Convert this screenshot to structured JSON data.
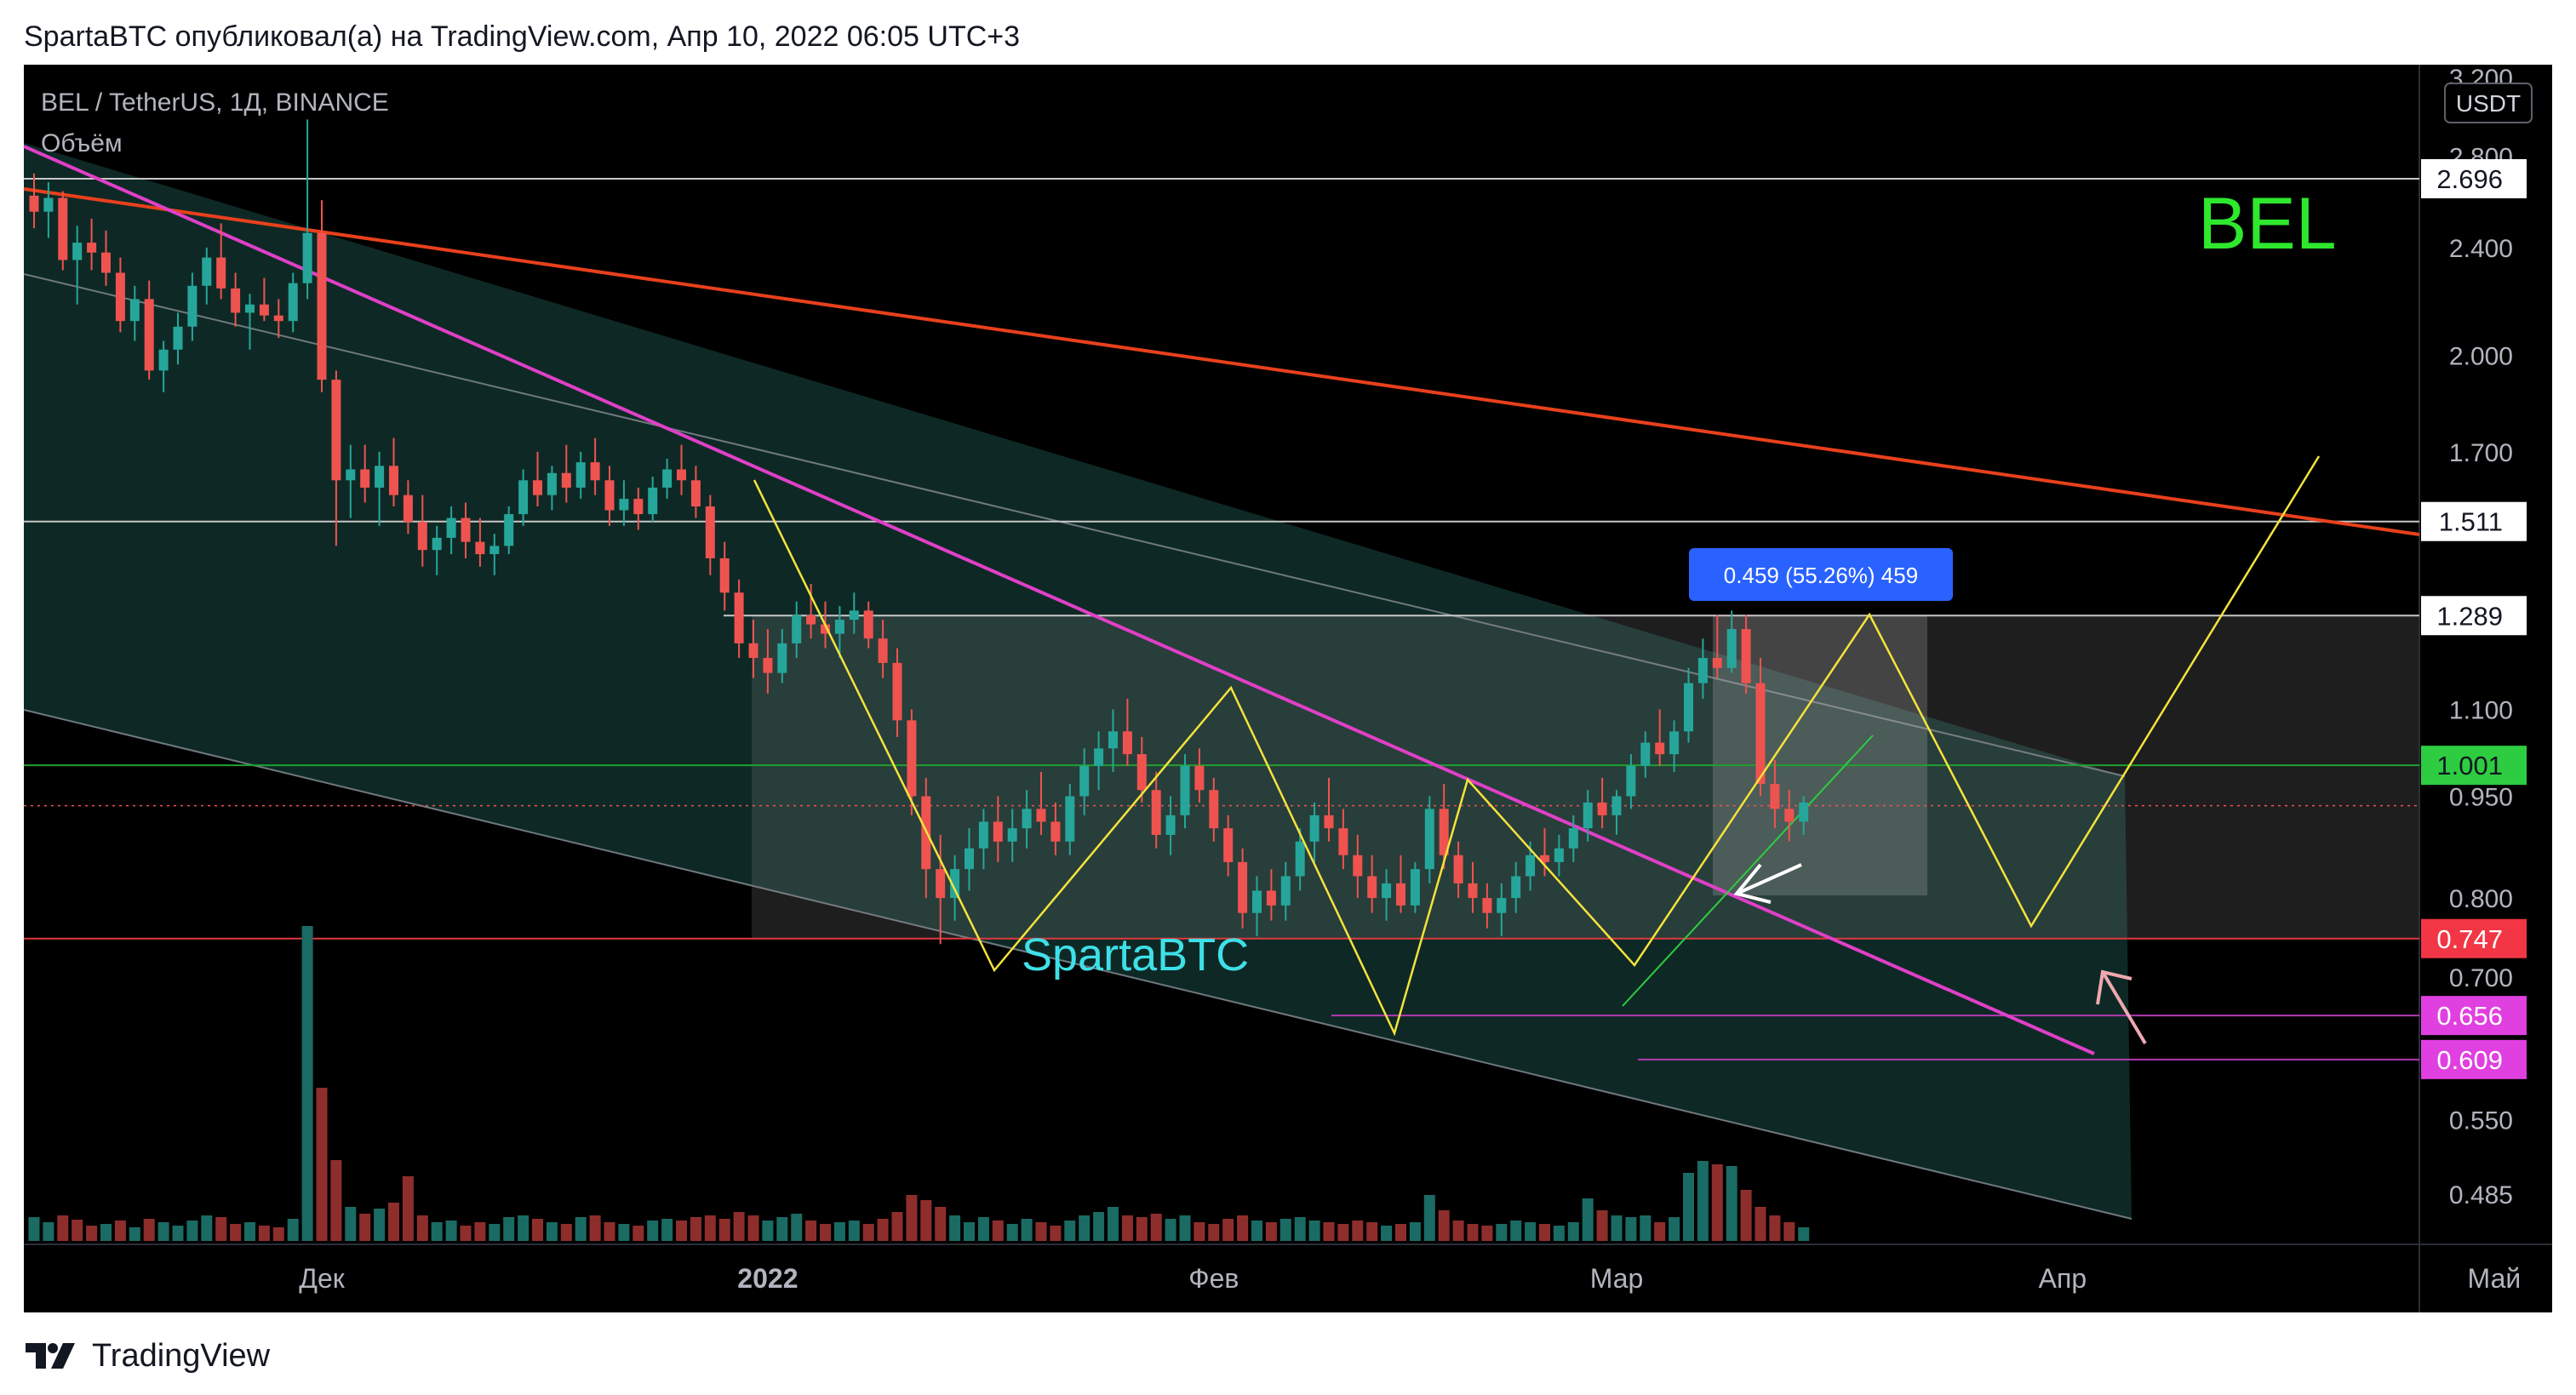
{
  "header": {
    "publish_line": "SpartaBTC опубликовал(а) на TradingView.com, Апр 10, 2022 06:05 UTC+3"
  },
  "footer": {
    "brand": "TradingView",
    "logo_icon": "tradingview-logo-icon"
  },
  "chart_data": {
    "type": "candlestick",
    "symbol_line": "BEL / TetherUS, 1Д, BINANCE",
    "indicator_label": "Объём",
    "watermark": "BEL",
    "author_label": "SpartaBTC",
    "currency_label": "USDT",
    "scale": "log",
    "ylim": [
      0.46,
      3.25
    ],
    "x_labels": [
      {
        "label": "Дек",
        "day": 20,
        "bold": false
      },
      {
        "label": "2022",
        "day": 51,
        "bold": true
      },
      {
        "label": "Фев",
        "day": 82,
        "bold": false
      },
      {
        "label": "Мар",
        "day": 110,
        "bold": false
      },
      {
        "label": "Апр",
        "day": 141,
        "bold": false
      },
      {
        "label": "Май",
        "day": 171,
        "bold": false
      }
    ],
    "y_ticks": [
      {
        "label": "3.200",
        "value": 3.2
      },
      {
        "label": "2.800",
        "value": 2.8
      },
      {
        "label": "2.400",
        "value": 2.4
      },
      {
        "label": "2.000",
        "value": 2.0
      },
      {
        "label": "1.700",
        "value": 1.7
      },
      {
        "label": "1.100",
        "value": 1.1
      },
      {
        "label": "0.950",
        "value": 0.95
      },
      {
        "label": "0.800",
        "value": 0.8
      },
      {
        "label": "0.700",
        "value": 0.7
      },
      {
        "label": "0.550",
        "value": 0.55
      },
      {
        "label": "0.485",
        "value": 0.485
      }
    ],
    "price_labels": [
      {
        "label": "2.696",
        "value": 2.696,
        "bg": "#ffffff",
        "fg": "#131722",
        "line": "#c8c8c8"
      },
      {
        "label": "1.511",
        "value": 1.511,
        "bg": "#ffffff",
        "fg": "#131722",
        "line": "#c8c8c8"
      },
      {
        "label": "1.289",
        "value": 1.289,
        "bg": "#ffffff",
        "fg": "#131722",
        "line": "#c8c8c8"
      },
      {
        "label": "1.001",
        "value": 1.001,
        "bg": "#2ecc40",
        "fg": "#131722",
        "line": "#1fa02f"
      },
      {
        "label": "0.747",
        "value": 0.747,
        "bg": "#f23645",
        "fg": "#ffffff",
        "line": "#e0393e"
      },
      {
        "label": "0.656",
        "value": 0.656,
        "bg": "#e040e0",
        "fg": "#ffffff",
        "line": "#b23ab2"
      },
      {
        "label": "0.609",
        "value": 0.609,
        "bg": "#e040e0",
        "fg": "#ffffff",
        "line": "#b23ab2"
      }
    ],
    "current_price": 0.935,
    "measure_label": "0.459 (55.26%) 459",
    "colors": {
      "background": "#000000",
      "up": "#26a69a",
      "down": "#ef5350",
      "volume_up": "#1a6b64",
      "volume_down": "#8e2e2c",
      "channel_fill": "#10302c",
      "magenta_trend": "#e040c8",
      "red_trend": "#e8401c",
      "zigzag": "#f5e33c",
      "measure_box": "#2962ff",
      "watermark": "#2ee82e",
      "author": "#3ee0e8"
    },
    "candles": [
      [
        0,
        2.62,
        2.72,
        2.48,
        2.55
      ],
      [
        1,
        2.55,
        2.68,
        2.44,
        2.61
      ],
      [
        2,
        2.61,
        2.64,
        2.31,
        2.35
      ],
      [
        3,
        2.35,
        2.49,
        2.18,
        2.42
      ],
      [
        4,
        2.42,
        2.52,
        2.31,
        2.38
      ],
      [
        5,
        2.38,
        2.47,
        2.25,
        2.3
      ],
      [
        6,
        2.3,
        2.36,
        2.08,
        2.12
      ],
      [
        7,
        2.12,
        2.25,
        2.05,
        2.2
      ],
      [
        8,
        2.2,
        2.27,
        1.92,
        1.95
      ],
      [
        9,
        1.95,
        2.05,
        1.88,
        2.02
      ],
      [
        10,
        2.02,
        2.15,
        1.97,
        2.1
      ],
      [
        11,
        2.1,
        2.3,
        2.05,
        2.25
      ],
      [
        12,
        2.25,
        2.4,
        2.18,
        2.36
      ],
      [
        13,
        2.36,
        2.5,
        2.2,
        2.24
      ],
      [
        14,
        2.24,
        2.3,
        2.1,
        2.15
      ],
      [
        15,
        2.15,
        2.22,
        2.02,
        2.18
      ],
      [
        16,
        2.18,
        2.28,
        2.12,
        2.14
      ],
      [
        17,
        2.14,
        2.2,
        2.06,
        2.12
      ],
      [
        18,
        2.12,
        2.3,
        2.08,
        2.26
      ],
      [
        19,
        2.26,
        2.98,
        2.2,
        2.46
      ],
      [
        20,
        2.46,
        2.6,
        1.88,
        1.92
      ],
      [
        21,
        1.92,
        1.95,
        1.45,
        1.62
      ],
      [
        22,
        1.62,
        1.72,
        1.52,
        1.65
      ],
      [
        23,
        1.65,
        1.72,
        1.56,
        1.6
      ],
      [
        24,
        1.6,
        1.7,
        1.5,
        1.66
      ],
      [
        25,
        1.66,
        1.74,
        1.55,
        1.58
      ],
      [
        26,
        1.58,
        1.62,
        1.48,
        1.51
      ],
      [
        27,
        1.51,
        1.58,
        1.4,
        1.44
      ],
      [
        28,
        1.44,
        1.5,
        1.38,
        1.47
      ],
      [
        29,
        1.47,
        1.55,
        1.43,
        1.52
      ],
      [
        30,
        1.52,
        1.56,
        1.42,
        1.46
      ],
      [
        31,
        1.46,
        1.52,
        1.4,
        1.43
      ],
      [
        32,
        1.43,
        1.48,
        1.38,
        1.45
      ],
      [
        33,
        1.45,
        1.55,
        1.43,
        1.53
      ],
      [
        34,
        1.53,
        1.65,
        1.5,
        1.62
      ],
      [
        35,
        1.62,
        1.7,
        1.55,
        1.58
      ],
      [
        36,
        1.58,
        1.66,
        1.54,
        1.64
      ],
      [
        37,
        1.64,
        1.72,
        1.56,
        1.6
      ],
      [
        38,
        1.6,
        1.7,
        1.57,
        1.67
      ],
      [
        39,
        1.67,
        1.74,
        1.58,
        1.62
      ],
      [
        40,
        1.62,
        1.66,
        1.5,
        1.54
      ],
      [
        41,
        1.54,
        1.62,
        1.5,
        1.57
      ],
      [
        42,
        1.57,
        1.6,
        1.49,
        1.53
      ],
      [
        43,
        1.53,
        1.63,
        1.51,
        1.6
      ],
      [
        44,
        1.6,
        1.68,
        1.57,
        1.65
      ],
      [
        45,
        1.65,
        1.72,
        1.58,
        1.62
      ],
      [
        46,
        1.62,
        1.66,
        1.52,
        1.55
      ],
      [
        47,
        1.55,
        1.58,
        1.38,
        1.42
      ],
      [
        48,
        1.42,
        1.46,
        1.3,
        1.34
      ],
      [
        49,
        1.34,
        1.37,
        1.2,
        1.23
      ],
      [
        50,
        1.23,
        1.28,
        1.16,
        1.2
      ],
      [
        51,
        1.2,
        1.26,
        1.13,
        1.17
      ],
      [
        52,
        1.17,
        1.26,
        1.15,
        1.23
      ],
      [
        53,
        1.23,
        1.32,
        1.2,
        1.29
      ],
      [
        54,
        1.29,
        1.36,
        1.24,
        1.27
      ],
      [
        55,
        1.27,
        1.32,
        1.22,
        1.25
      ],
      [
        56,
        1.25,
        1.31,
        1.2,
        1.28
      ],
      [
        57,
        1.28,
        1.34,
        1.25,
        1.3
      ],
      [
        58,
        1.3,
        1.32,
        1.22,
        1.24
      ],
      [
        59,
        1.24,
        1.28,
        1.16,
        1.19
      ],
      [
        60,
        1.19,
        1.22,
        1.05,
        1.08
      ],
      [
        61,
        1.08,
        1.1,
        0.92,
        0.95
      ],
      [
        62,
        0.95,
        0.98,
        0.8,
        0.84
      ],
      [
        63,
        0.84,
        0.89,
        0.74,
        0.8
      ],
      [
        64,
        0.8,
        0.86,
        0.77,
        0.84
      ],
      [
        65,
        0.84,
        0.9,
        0.81,
        0.87
      ],
      [
        66,
        0.87,
        0.93,
        0.84,
        0.91
      ],
      [
        67,
        0.91,
        0.95,
        0.85,
        0.88
      ],
      [
        68,
        0.88,
        0.93,
        0.85,
        0.9
      ],
      [
        69,
        0.9,
        0.96,
        0.87,
        0.93
      ],
      [
        70,
        0.93,
        0.99,
        0.89,
        0.91
      ],
      [
        71,
        0.91,
        0.94,
        0.86,
        0.88
      ],
      [
        72,
        0.88,
        0.97,
        0.86,
        0.95
      ],
      [
        73,
        0.95,
        1.03,
        0.92,
        1.0
      ],
      [
        74,
        1.0,
        1.06,
        0.96,
        1.03
      ],
      [
        75,
        1.03,
        1.1,
        0.99,
        1.06
      ],
      [
        76,
        1.06,
        1.12,
        1.0,
        1.02
      ],
      [
        77,
        1.02,
        1.05,
        0.94,
        0.96
      ],
      [
        78,
        0.96,
        0.99,
        0.87,
        0.89
      ],
      [
        79,
        0.89,
        0.95,
        0.86,
        0.92
      ],
      [
        80,
        0.92,
        1.02,
        0.9,
        1.0
      ],
      [
        81,
        1.0,
        1.03,
        0.94,
        0.96
      ],
      [
        82,
        0.96,
        0.98,
        0.88,
        0.9
      ],
      [
        83,
        0.9,
        0.92,
        0.83,
        0.85
      ],
      [
        84,
        0.85,
        0.87,
        0.76,
        0.78
      ],
      [
        85,
        0.78,
        0.83,
        0.75,
        0.81
      ],
      [
        86,
        0.81,
        0.84,
        0.77,
        0.79
      ],
      [
        87,
        0.79,
        0.85,
        0.77,
        0.83
      ],
      [
        88,
        0.83,
        0.9,
        0.81,
        0.88
      ],
      [
        89,
        0.88,
        0.94,
        0.85,
        0.92
      ],
      [
        90,
        0.92,
        0.98,
        0.88,
        0.9
      ],
      [
        91,
        0.9,
        0.93,
        0.84,
        0.86
      ],
      [
        92,
        0.86,
        0.89,
        0.8,
        0.83
      ],
      [
        93,
        0.83,
        0.86,
        0.78,
        0.8
      ],
      [
        94,
        0.8,
        0.84,
        0.77,
        0.82
      ],
      [
        95,
        0.82,
        0.86,
        0.78,
        0.79
      ],
      [
        96,
        0.79,
        0.85,
        0.78,
        0.84
      ],
      [
        97,
        0.84,
        0.95,
        0.82,
        0.93
      ],
      [
        98,
        0.93,
        0.97,
        0.84,
        0.86
      ],
      [
        99,
        0.86,
        0.88,
        0.8,
        0.82
      ],
      [
        100,
        0.82,
        0.85,
        0.78,
        0.8
      ],
      [
        101,
        0.8,
        0.82,
        0.76,
        0.78
      ],
      [
        102,
        0.78,
        0.82,
        0.75,
        0.8
      ],
      [
        103,
        0.8,
        0.85,
        0.78,
        0.83
      ],
      [
        104,
        0.83,
        0.88,
        0.81,
        0.86
      ],
      [
        105,
        0.86,
        0.9,
        0.83,
        0.85
      ],
      [
        106,
        0.85,
        0.89,
        0.83,
        0.87
      ],
      [
        107,
        0.87,
        0.92,
        0.85,
        0.9
      ],
      [
        108,
        0.9,
        0.96,
        0.88,
        0.94
      ],
      [
        109,
        0.94,
        0.98,
        0.9,
        0.92
      ],
      [
        110,
        0.92,
        0.96,
        0.89,
        0.95
      ],
      [
        111,
        0.95,
        1.02,
        0.93,
        1.0
      ],
      [
        112,
        1.0,
        1.06,
        0.98,
        1.04
      ],
      [
        113,
        1.04,
        1.1,
        1.0,
        1.02
      ],
      [
        114,
        1.02,
        1.08,
        0.99,
        1.06
      ],
      [
        115,
        1.06,
        1.18,
        1.04,
        1.15
      ],
      [
        116,
        1.15,
        1.24,
        1.12,
        1.2
      ],
      [
        117,
        1.2,
        1.29,
        1.16,
        1.18
      ],
      [
        118,
        1.18,
        1.3,
        1.17,
        1.26
      ],
      [
        119,
        1.26,
        1.29,
        1.13,
        1.15
      ],
      [
        120,
        1.15,
        1.2,
        0.95,
        0.97
      ],
      [
        121,
        0.97,
        1.01,
        0.9,
        0.93
      ],
      [
        122,
        0.93,
        0.96,
        0.88,
        0.91
      ],
      [
        123,
        0.91,
        0.95,
        0.89,
        0.94
      ]
    ],
    "volumes": [
      [
        0,
        28,
        1
      ],
      [
        1,
        22,
        1
      ],
      [
        2,
        30,
        0
      ],
      [
        3,
        25,
        0
      ],
      [
        4,
        18,
        0
      ],
      [
        5,
        20,
        1
      ],
      [
        6,
        24,
        0
      ],
      [
        7,
        16,
        1
      ],
      [
        8,
        26,
        0
      ],
      [
        9,
        22,
        1
      ],
      [
        10,
        18,
        1
      ],
      [
        11,
        24,
        1
      ],
      [
        12,
        30,
        1
      ],
      [
        13,
        28,
        0
      ],
      [
        14,
        20,
        0
      ],
      [
        15,
        22,
        1
      ],
      [
        16,
        18,
        0
      ],
      [
        17,
        16,
        0
      ],
      [
        18,
        26,
        1
      ],
      [
        19,
        370,
        1
      ],
      [
        20,
        180,
        0
      ],
      [
        21,
        95,
        0
      ],
      [
        22,
        40,
        1
      ],
      [
        23,
        32,
        0
      ],
      [
        24,
        38,
        1
      ],
      [
        25,
        45,
        0
      ],
      [
        26,
        76,
        0
      ],
      [
        27,
        30,
        0
      ],
      [
        28,
        22,
        1
      ],
      [
        29,
        24,
        1
      ],
      [
        30,
        18,
        0
      ],
      [
        31,
        22,
        0
      ],
      [
        32,
        20,
        1
      ],
      [
        33,
        28,
        1
      ],
      [
        34,
        30,
        1
      ],
      [
        35,
        26,
        0
      ],
      [
        36,
        22,
        1
      ],
      [
        37,
        20,
        0
      ],
      [
        38,
        28,
        1
      ],
      [
        39,
        30,
        0
      ],
      [
        40,
        22,
        0
      ],
      [
        41,
        20,
        1
      ],
      [
        42,
        18,
        0
      ],
      [
        43,
        24,
        1
      ],
      [
        44,
        26,
        1
      ],
      [
        45,
        24,
        0
      ],
      [
        46,
        28,
        0
      ],
      [
        47,
        30,
        0
      ],
      [
        48,
        26,
        0
      ],
      [
        49,
        34,
        0
      ],
      [
        50,
        30,
        0
      ],
      [
        51,
        24,
        1
      ],
      [
        52,
        28,
        1
      ],
      [
        53,
        32,
        1
      ],
      [
        54,
        24,
        0
      ],
      [
        55,
        20,
        0
      ],
      [
        56,
        22,
        1
      ],
      [
        57,
        24,
        1
      ],
      [
        58,
        20,
        0
      ],
      [
        59,
        26,
        0
      ],
      [
        60,
        34,
        0
      ],
      [
        61,
        54,
        0
      ],
      [
        62,
        48,
        0
      ],
      [
        63,
        40,
        0
      ],
      [
        64,
        30,
        1
      ],
      [
        65,
        22,
        1
      ],
      [
        66,
        28,
        1
      ],
      [
        67,
        24,
        0
      ],
      [
        68,
        20,
        1
      ],
      [
        69,
        26,
        1
      ],
      [
        70,
        22,
        0
      ],
      [
        71,
        18,
        0
      ],
      [
        72,
        24,
        1
      ],
      [
        73,
        30,
        1
      ],
      [
        74,
        34,
        1
      ],
      [
        75,
        40,
        1
      ],
      [
        76,
        30,
        0
      ],
      [
        77,
        28,
        0
      ],
      [
        78,
        32,
        0
      ],
      [
        79,
        26,
        1
      ],
      [
        80,
        30,
        1
      ],
      [
        81,
        22,
        0
      ],
      [
        82,
        20,
        0
      ],
      [
        83,
        26,
        0
      ],
      [
        84,
        30,
        0
      ],
      [
        85,
        24,
        1
      ],
      [
        86,
        22,
        0
      ],
      [
        87,
        26,
        1
      ],
      [
        88,
        28,
        1
      ],
      [
        89,
        24,
        1
      ],
      [
        90,
        22,
        0
      ],
      [
        91,
        20,
        0
      ],
      [
        92,
        24,
        0
      ],
      [
        93,
        22,
        0
      ],
      [
        94,
        18,
        1
      ],
      [
        95,
        20,
        0
      ],
      [
        96,
        22,
        1
      ],
      [
        97,
        54,
        1
      ],
      [
        98,
        36,
        0
      ],
      [
        99,
        24,
        0
      ],
      [
        100,
        20,
        0
      ],
      [
        101,
        18,
        0
      ],
      [
        102,
        20,
        1
      ],
      [
        103,
        24,
        1
      ],
      [
        104,
        22,
        1
      ],
      [
        105,
        20,
        0
      ],
      [
        106,
        18,
        1
      ],
      [
        107,
        22,
        1
      ],
      [
        108,
        50,
        1
      ],
      [
        109,
        36,
        0
      ],
      [
        110,
        30,
        1
      ],
      [
        111,
        28,
        1
      ],
      [
        112,
        30,
        1
      ],
      [
        113,
        22,
        0
      ],
      [
        114,
        28,
        1
      ],
      [
        115,
        80,
        1
      ],
      [
        116,
        94,
        1
      ],
      [
        117,
        90,
        0
      ],
      [
        118,
        88,
        1
      ],
      [
        119,
        60,
        0
      ],
      [
        120,
        40,
        0
      ],
      [
        121,
        30,
        0
      ],
      [
        122,
        22,
        0
      ],
      [
        123,
        16,
        1
      ]
    ]
  }
}
